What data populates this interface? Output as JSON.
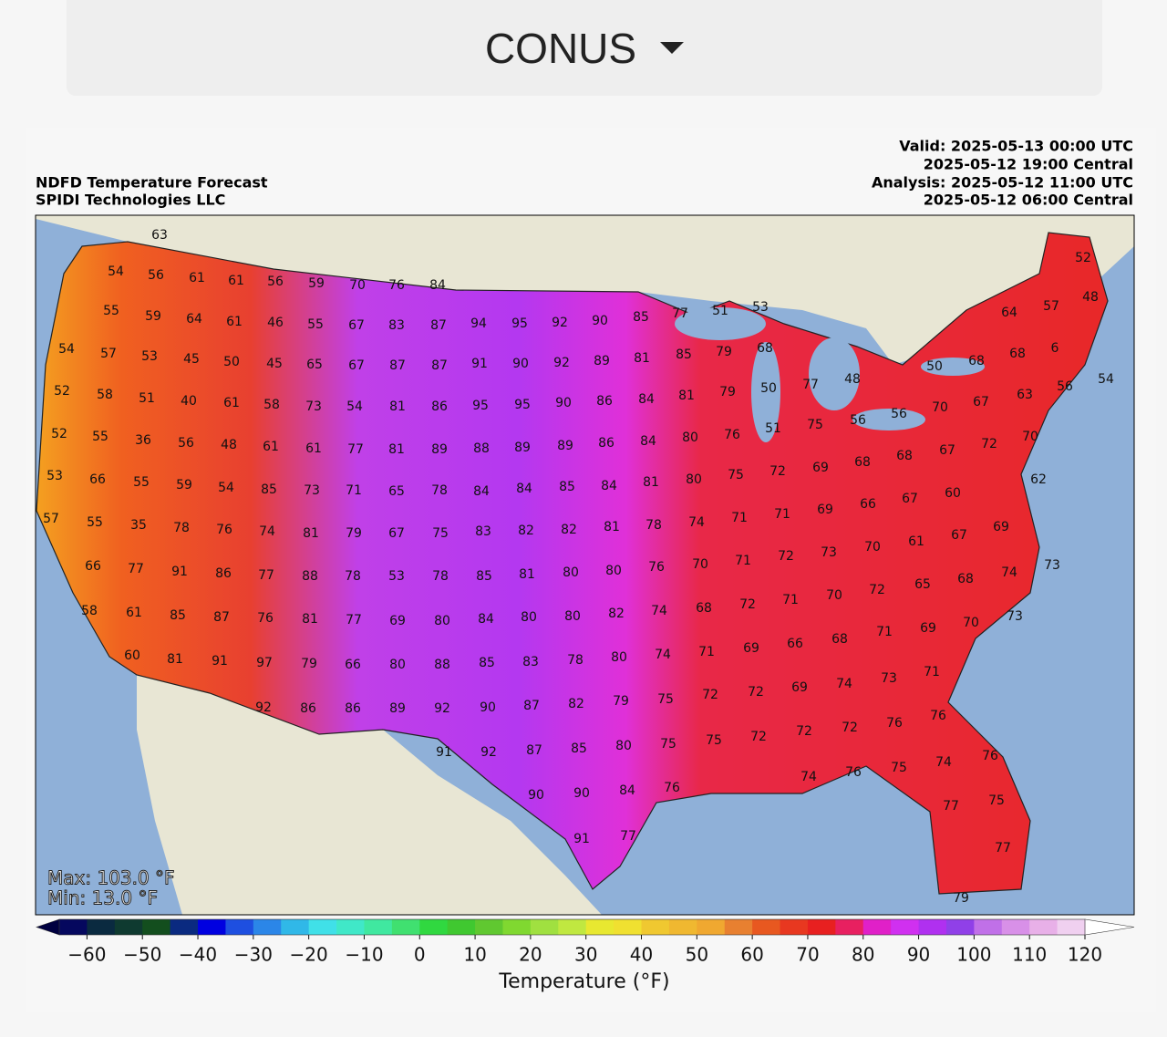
{
  "header": {
    "region": "CONUS"
  },
  "map": {
    "title": "NDFD Temperature Forecast",
    "subtitle": "SPIDI Technologies LLC",
    "valid_utc": "Valid: 2025-05-13 00:00 UTC",
    "valid_local": "2025-05-12 19:00 Central",
    "analysis_utc": "Analysis: 2025-05-12 11:00 UTC",
    "analysis_local": "2025-05-12 06:00 Central",
    "max": "Max: 103.0 °F",
    "min": "Min: 13.0 °F",
    "labels": [
      63,
      54,
      56,
      61,
      61,
      56,
      59,
      70,
      76,
      84,
      52,
      55,
      53,
      51,
      57,
      48,
      59,
      64,
      61,
      46,
      55,
      67,
      83,
      87,
      94,
      95,
      92,
      90,
      85,
      77,
      64,
      54,
      57,
      53,
      45,
      50,
      45,
      65,
      67,
      87,
      87,
      91,
      90,
      92,
      89,
      81,
      85,
      79,
      68,
      68,
      "6",
      50,
      68,
      48,
      54,
      56,
      52,
      58,
      51,
      40,
      61,
      58,
      73,
      54,
      81,
      86,
      95,
      95,
      90,
      86,
      84,
      81,
      79,
      50,
      77,
      63,
      67,
      70,
      51,
      75,
      56,
      56,
      52,
      55,
      36,
      56,
      48,
      61,
      61,
      77,
      81,
      89,
      88,
      89,
      89,
      86,
      84,
      80,
      76,
      70,
      72,
      67,
      53,
      66,
      55,
      59,
      54,
      85,
      73,
      71,
      65,
      78,
      84,
      84,
      85,
      84,
      81,
      80,
      75,
      72,
      69,
      68,
      68,
      62,
      60,
      57,
      55,
      35,
      78,
      76,
      74,
      81,
      79,
      67,
      75,
      83,
      82,
      82,
      81,
      78,
      74,
      71,
      71,
      69,
      66,
      67,
      69,
      67,
      61,
      66,
      77,
      91,
      86,
      77,
      88,
      78,
      53,
      78,
      85,
      81,
      80,
      80,
      76,
      70,
      71,
      72,
      73,
      70,
      74,
      73,
      58,
      61,
      85,
      87,
      76,
      81,
      77,
      69,
      80,
      84,
      80,
      80,
      82,
      74,
      68,
      72,
      71,
      70,
      72,
      65,
      68,
      70,
      73,
      69,
      71,
      60,
      81,
      91,
      97,
      79,
      66,
      80,
      88,
      85,
      83,
      78,
      80,
      74,
      71,
      69,
      66,
      68,
      71,
      73,
      74,
      69,
      72,
      92,
      86,
      86,
      89,
      92,
      90,
      87,
      82,
      79,
      75,
      72,
      76,
      76,
      72,
      72,
      72,
      75,
      91,
      92,
      87,
      85,
      80,
      75,
      76,
      74,
      75,
      76,
      74,
      76,
      90,
      90,
      84,
      77,
      75,
      91,
      77,
      77,
      79
    ]
  },
  "colorbar": {
    "label": "Temperature (°F)",
    "lim": [
      -65,
      120
    ],
    "colors": [
      "#05085e",
      "#0a2a40",
      "#0f3a30",
      "#134e1e",
      "#0a2a80",
      "#0000e0",
      "#1e4fe0",
      "#2b86e8",
      "#30b8e8",
      "#40e0e8",
      "#40e8c8",
      "#40e8a0",
      "#40e070",
      "#30d840",
      "#40c830",
      "#60c830",
      "#80d830",
      "#a0e040",
      "#c0e840",
      "#e8e830",
      "#f0e030",
      "#f0c830",
      "#f0b830",
      "#f0a830",
      "#e88030",
      "#e85820",
      "#e83820",
      "#e82020",
      "#e82060",
      "#e020c8",
      "#d030f0",
      "#b030f0",
      "#9040e8",
      "#c070e8",
      "#d890e8",
      "#e8b0e8",
      "#f0d0f0"
    ],
    "under_color": "#000040",
    "over_color": "#ffffff",
    "ticks": [
      {
        "value": -60,
        "label": "−60"
      },
      {
        "value": -50,
        "label": "−50"
      },
      {
        "value": -40,
        "label": "−40"
      },
      {
        "value": -30,
        "label": "−30"
      },
      {
        "value": -20,
        "label": "−20"
      },
      {
        "value": -10,
        "label": "−10"
      },
      0,
      10,
      20,
      30,
      40,
      50,
      60,
      70,
      80,
      90,
      100,
      110,
      120
    ]
  }
}
